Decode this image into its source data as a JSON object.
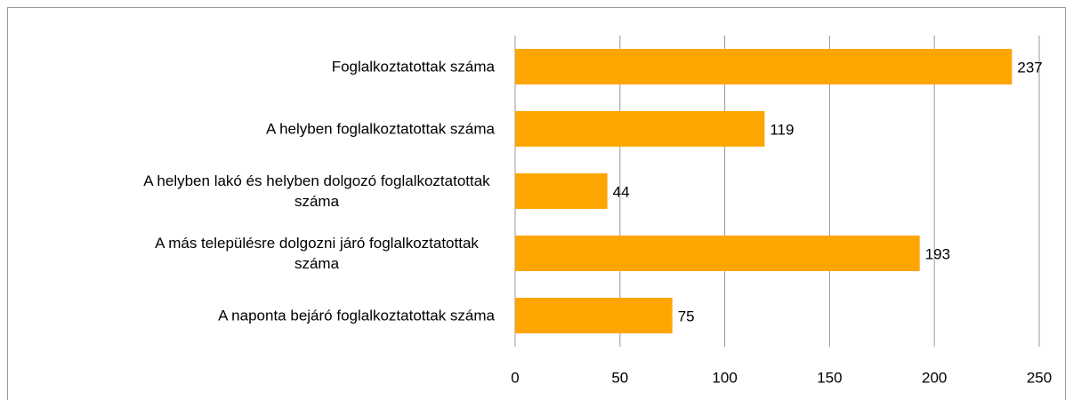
{
  "chart_data": {
    "type": "hbar",
    "categories": [
      "Foglalkoztatottak száma",
      "A helyben foglalkoztatottak száma",
      "A helyben lakó és helyben dolgozó foglalkoztatottak száma",
      "A más településre dolgozni járó foglalkoztatottak száma",
      "A naponta bejáró foglalkoztatottak száma"
    ],
    "values": [
      237,
      119,
      44,
      193,
      75
    ],
    "color": "#ffa500",
    "xlim": [
      0,
      250
    ],
    "xticks": [
      0,
      50,
      100,
      150,
      200,
      250
    ],
    "grid": true
  }
}
